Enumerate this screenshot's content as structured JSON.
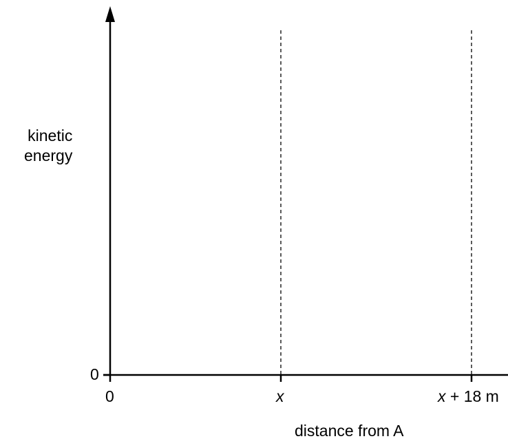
{
  "diagram": {
    "y_axis": {
      "label_line1": "kinetic",
      "label_line2": "energy",
      "origin_label": "0"
    },
    "x_axis": {
      "label": "distance from A",
      "ticks": [
        {
          "var": "",
          "suffix": "0"
        },
        {
          "var": "x",
          "suffix": ""
        },
        {
          "var": "x",
          "suffix": " + 18 m"
        }
      ]
    },
    "colors": {
      "axis": "#000000",
      "guide": "#000000"
    }
  }
}
